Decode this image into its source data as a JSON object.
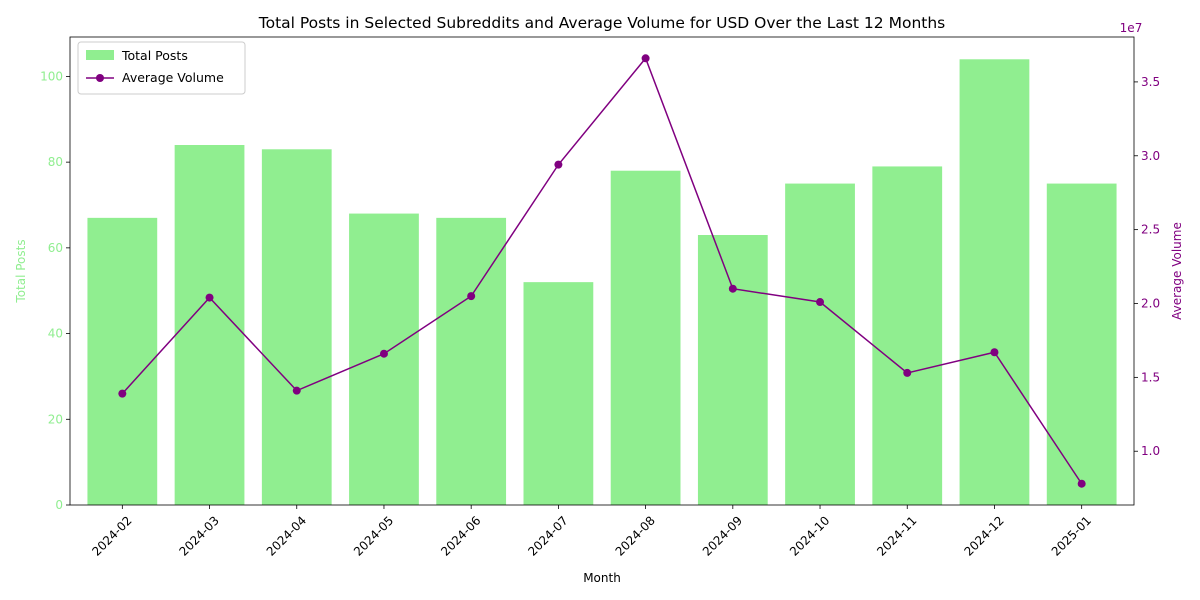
{
  "chart_data": {
    "type": "bar+line",
    "title": "Total Posts in Selected Subreddits and Average Volume for USD Over the Last 12 Months",
    "xlabel": "Month",
    "categories": [
      "2024-02",
      "2024-03",
      "2024-04",
      "2024-05",
      "2024-06",
      "2024-07",
      "2024-08",
      "2024-09",
      "2024-10",
      "2024-11",
      "2024-12",
      "2025-01"
    ],
    "series": [
      {
        "name": "Total Posts",
        "kind": "bar",
        "axis": "left",
        "color": "#90ee90",
        "values": [
          67,
          84,
          83,
          68,
          67,
          52,
          78,
          63,
          75,
          79,
          104,
          75
        ]
      },
      {
        "name": "Average Volume",
        "kind": "line",
        "axis": "right",
        "color": "#800080",
        "marker": "circle",
        "values": [
          13900000,
          20400000,
          14100000,
          16600000,
          20500000,
          29400000,
          36600000,
          21000000,
          20100000,
          15300000,
          16700000,
          7800000
        ]
      }
    ],
    "y_left": {
      "label": "Total Posts",
      "color": "#90ee90",
      "lim": [
        0,
        109.2
      ],
      "ticks": [
        0,
        20,
        40,
        60,
        80,
        100
      ],
      "tick_labels": [
        "0",
        "20",
        "40",
        "60",
        "80",
        "100"
      ]
    },
    "y_right": {
      "label": "Average Volume",
      "color": "#800080",
      "lim": [
        6360000,
        38040000
      ],
      "ticks": [
        10000000,
        15000000,
        20000000,
        25000000,
        30000000,
        35000000
      ],
      "tick_labels": [
        "1.0",
        "1.5",
        "2.0",
        "2.5",
        "3.0",
        "3.5"
      ],
      "offset_text": "1e7"
    },
    "legend": {
      "placement": "upper-left",
      "entries": [
        "Total Posts",
        "Average Volume"
      ]
    },
    "grid": false
  }
}
